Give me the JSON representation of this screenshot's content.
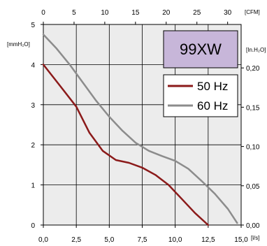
{
  "chart_data": {
    "type": "line",
    "model_label": "99XW",
    "units": {
      "x_bottom": "[l/s]",
      "x_top": "[CFM]",
      "y_left": "[mmH₂O]",
      "y_right": "[In.H₂O]"
    },
    "x_bottom_ticks": [
      "0,0",
      "2,5",
      "5,0",
      "7,5",
      "10,0",
      "12,5",
      "15,0"
    ],
    "x_top_ticks": [
      "0",
      "5",
      "10",
      "15",
      "20",
      "25",
      "30"
    ],
    "y_left_ticks": [
      "0",
      "1",
      "2",
      "3",
      "4",
      "5"
    ],
    "y_right_ticks": [
      "0,00",
      "0,05",
      "0,10",
      "0,15",
      "0,20"
    ],
    "xlim": [
      0,
      15
    ],
    "ylim": [
      0,
      5
    ],
    "grid": true,
    "legend_position": "right",
    "series": [
      {
        "name": "50 Hz",
        "color": "#8b1a1a",
        "x": [
          0.0,
          1.2,
          2.5,
          3.5,
          4.5,
          5.5,
          6.5,
          7.5,
          8.5,
          9.5,
          10.5,
          11.5,
          12.5
        ],
        "y": [
          4.0,
          3.5,
          2.95,
          2.3,
          1.85,
          1.62,
          1.55,
          1.43,
          1.25,
          1.0,
          0.65,
          0.3,
          0.0
        ]
      },
      {
        "name": "60 Hz",
        "color": "#8c8c8c",
        "x": [
          0.0,
          1.0,
          2.0,
          3.0,
          4.0,
          5.0,
          6.0,
          7.0,
          8.0,
          9.0,
          10.0,
          11.0,
          12.0,
          13.0,
          14.0,
          14.7
        ],
        "y": [
          4.75,
          4.4,
          4.0,
          3.55,
          3.1,
          2.7,
          2.35,
          2.05,
          1.85,
          1.72,
          1.6,
          1.4,
          1.1,
          0.78,
          0.4,
          0.05
        ]
      }
    ]
  }
}
